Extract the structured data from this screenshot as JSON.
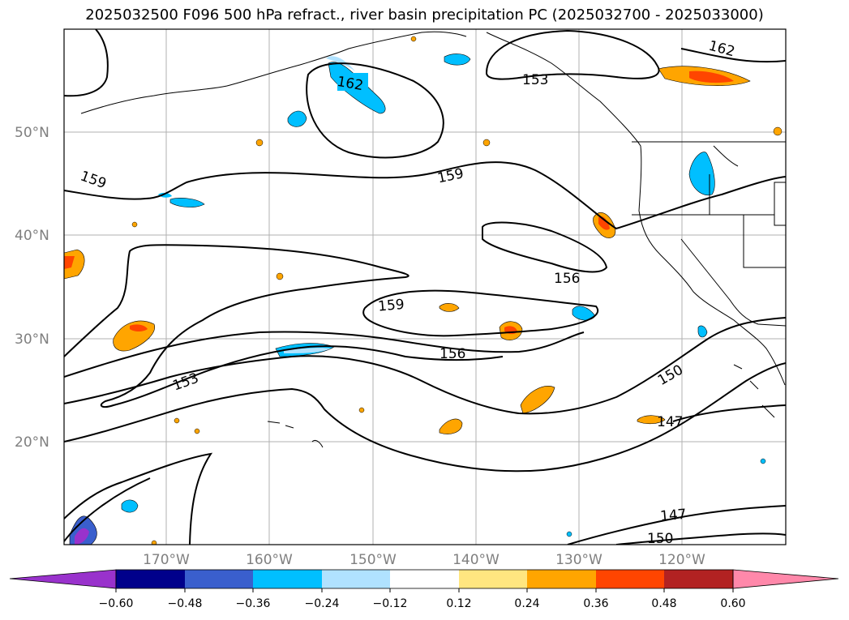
{
  "title": "2025032500 F096 500 hPa refract., river basin precipitation PC (2025032700 - 2025033000)",
  "lat_ticks": [
    "50°N",
    "40°N",
    "30°N",
    "20°N"
  ],
  "lon_ticks": [
    "170°W",
    "160°W",
    "150°W",
    "140°W",
    "130°W",
    "120°W"
  ],
  "contour_labels": [
    "162",
    "162",
    "153",
    "159",
    "159",
    "156",
    "159",
    "156",
    "153",
    "150",
    "147",
    "147",
    "150"
  ],
  "colorbar": {
    "ticks": [
      "−0.60",
      "−0.48",
      "−0.36",
      "−0.24",
      "−0.12",
      "0.12",
      "0.24",
      "0.36",
      "0.48",
      "0.60"
    ],
    "colors": [
      "#9932cc",
      "#00008b",
      "#3a5fcd",
      "#00bfff",
      "#b0e2ff",
      "#ffffff",
      "#ffe680",
      "#ffa500",
      "#ff4500",
      "#b22222",
      "#ff88aa",
      "#ff88aa"
    ]
  }
}
